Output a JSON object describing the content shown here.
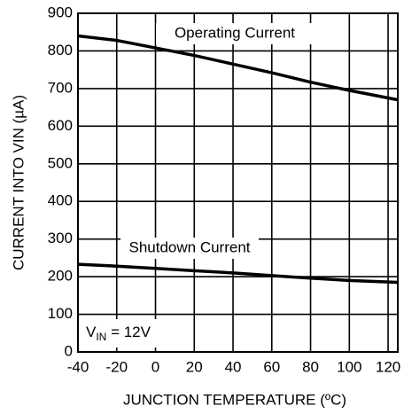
{
  "chart_data": {
    "type": "line",
    "x": [
      -40,
      -20,
      0,
      20,
      40,
      60,
      80,
      100,
      125
    ],
    "series": [
      {
        "name": "Operating Current",
        "color": "#000000",
        "values": [
          840,
          828,
          808,
          788,
          765,
          742,
          717,
          695,
          670
        ]
      },
      {
        "name": "Shutdown Current",
        "color": "#000000",
        "values": [
          233,
          228,
          222,
          216,
          210,
          203,
          196,
          190,
          185
        ]
      }
    ],
    "xlabel": "JUNCTION TEMPERATURE (ºC)",
    "ylabel": "CURRENT INTO VIN (µA)",
    "annotation": {
      "text": "V",
      "subscript": "IN",
      "suffix": " = 12V"
    },
    "xlim": [
      -40,
      125
    ],
    "xticks": [
      -40,
      -20,
      0,
      20,
      40,
      60,
      80,
      100,
      120
    ],
    "ylim": [
      0,
      900
    ],
    "yticks": [
      0,
      100,
      200,
      300,
      400,
      500,
      600,
      700,
      800,
      900
    ],
    "grid": true
  }
}
